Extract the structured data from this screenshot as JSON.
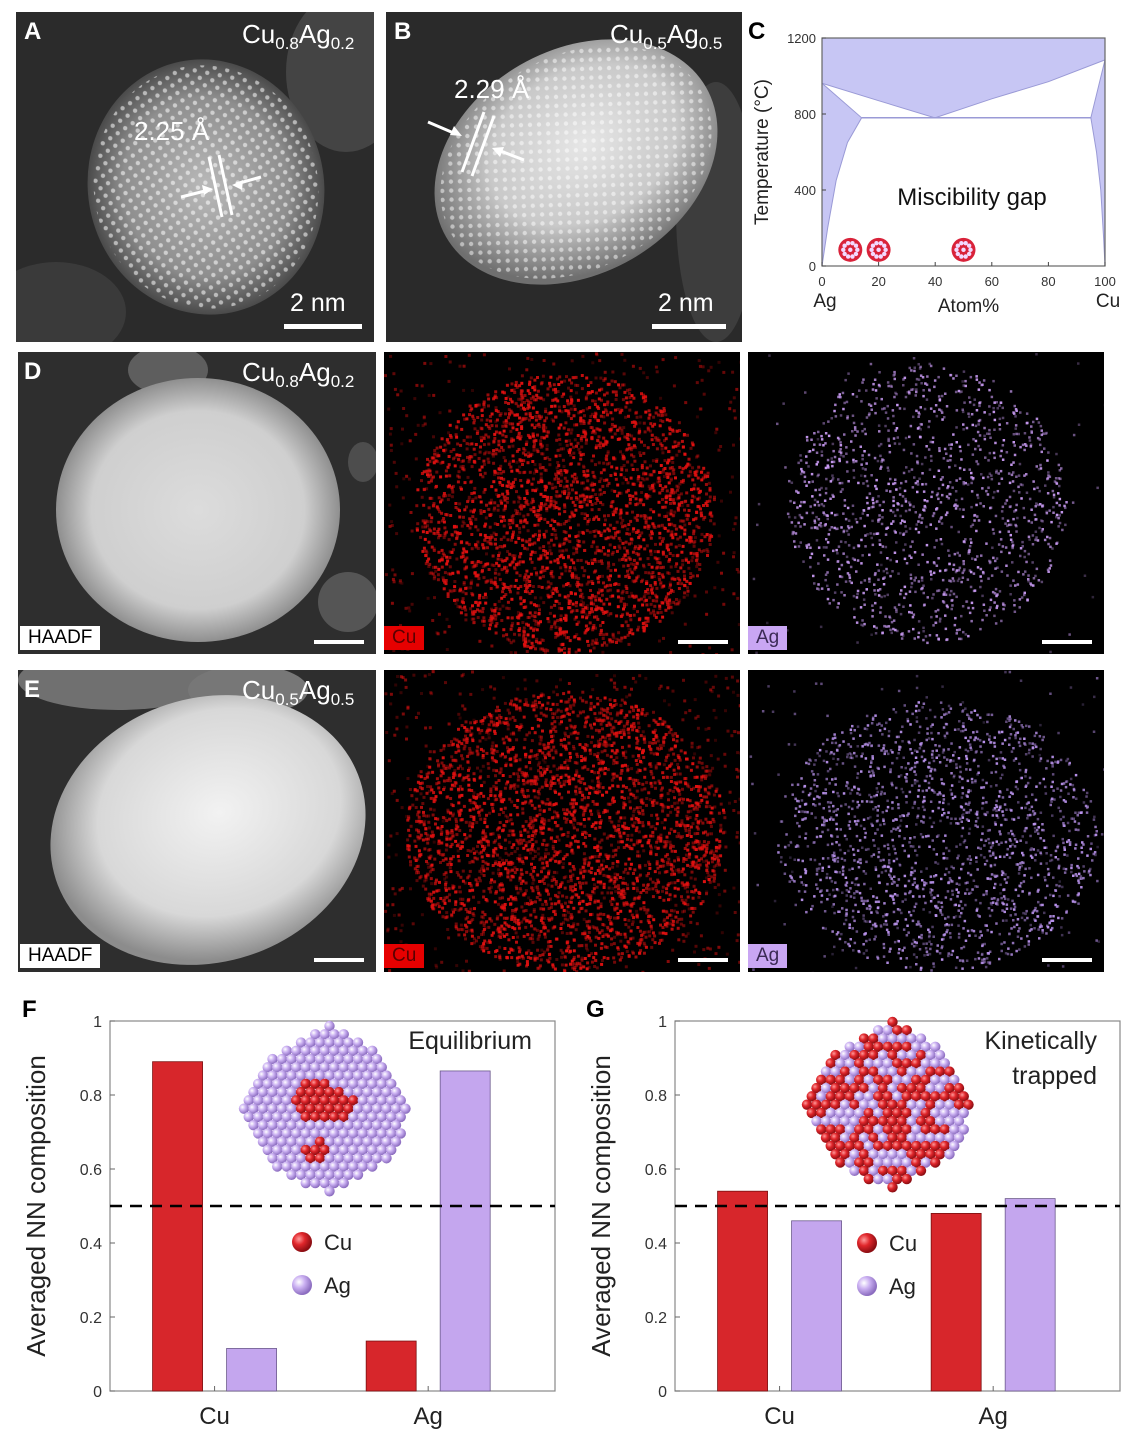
{
  "panels": {
    "A": {
      "label": "A",
      "composition": {
        "el1": "Cu",
        "sub1": "0.8",
        "el2": "Ag",
        "sub2": "0.2"
      },
      "spacing": "2.25 Å",
      "scale": "2 nm"
    },
    "B": {
      "label": "B",
      "composition": {
        "el1": "Cu",
        "sub1": "0.5",
        "el2": "Ag",
        "sub2": "0.5"
      },
      "spacing": "2.29 Å",
      "scale": "2 nm"
    },
    "C": {
      "label": "C"
    },
    "D": {
      "label": "D",
      "composition": {
        "el1": "Cu",
        "sub1": "0.8",
        "el2": "Ag",
        "sub2": "0.2"
      },
      "tags": {
        "haadf": "HAADF",
        "cu": "Cu",
        "ag": "Ag"
      }
    },
    "E": {
      "label": "E",
      "composition": {
        "el1": "Cu",
        "sub1": "0.5",
        "el2": "Ag",
        "sub2": "0.5"
      },
      "tags": {
        "haadf": "HAADF",
        "cu": "Cu",
        "ag": "Ag"
      }
    },
    "F": {
      "label": "F",
      "annotation": "Equilibrium"
    },
    "G": {
      "label": "G",
      "annotation_line1": "Kinetically",
      "annotation_line2": "trapped"
    }
  },
  "colors": {
    "cu": "#d7262b",
    "ag": "#c4a6ee",
    "miscibility_fill": "#c7c6f4"
  },
  "chart_data": [
    {
      "id": "C",
      "type": "area",
      "title": "",
      "xlabel": "Atom%",
      "ylabel": "Temperature (°C)",
      "x_ticks": [
        "0",
        "20",
        "40",
        "60",
        "80",
        "100"
      ],
      "y_ticks": [
        "0",
        "400",
        "800",
        "1200"
      ],
      "xlim": [
        0,
        100
      ],
      "ylim": [
        0,
        1200
      ],
      "x_end_labels": {
        "left": "Ag",
        "right": "Cu"
      },
      "annotation": "Miscibility gap",
      "phase_boundaries": {
        "liquidus": [
          [
            0,
            962
          ],
          [
            20,
            870
          ],
          [
            39.9,
            780
          ],
          [
            60,
            880
          ],
          [
            80,
            970
          ],
          [
            100,
            1085
          ]
        ],
        "eutectic_temperature": 780,
        "eutectic_span": [
          14,
          95
        ],
        "ag_solvus": [
          [
            0,
            0
          ],
          [
            2,
            200
          ],
          [
            5,
            450
          ],
          [
            9,
            650
          ],
          [
            14,
            780
          ]
        ],
        "cu_solvus": [
          [
            95,
            780
          ],
          [
            97,
            600
          ],
          [
            98.5,
            400
          ],
          [
            99.5,
            150
          ],
          [
            100,
            0
          ]
        ]
      },
      "points": [
        {
          "x": 10,
          "y": 85
        },
        {
          "x": 20,
          "y": 85
        },
        {
          "x": 50,
          "y": 85
        }
      ]
    },
    {
      "id": "F",
      "type": "bar",
      "categories": [
        "Cu",
        "Ag"
      ],
      "ylabel": "Averaged NN composition",
      "y_ticks": [
        "0",
        "0.2",
        "0.4",
        "0.6",
        "0.8",
        "1"
      ],
      "ylim": [
        0,
        1
      ],
      "reference_line": 0.5,
      "legend": [
        "Cu",
        "Ag"
      ],
      "legend_position": "center",
      "series": [
        {
          "name": "Cu",
          "values": [
            0.89,
            0.135
          ]
        },
        {
          "name": "Ag",
          "values": [
            0.115,
            0.865
          ]
        }
      ]
    },
    {
      "id": "G",
      "type": "bar",
      "categories": [
        "Cu",
        "Ag"
      ],
      "ylabel": "Averaged NN composition",
      "y_ticks": [
        "0",
        "0.2",
        "0.4",
        "0.6",
        "0.8",
        "1"
      ],
      "ylim": [
        0,
        1
      ],
      "reference_line": 0.5,
      "legend": [
        "Cu",
        "Ag"
      ],
      "legend_position": "center",
      "series": [
        {
          "name": "Cu",
          "values": [
            0.54,
            0.48
          ]
        },
        {
          "name": "Ag",
          "values": [
            0.46,
            0.52
          ]
        }
      ]
    }
  ]
}
